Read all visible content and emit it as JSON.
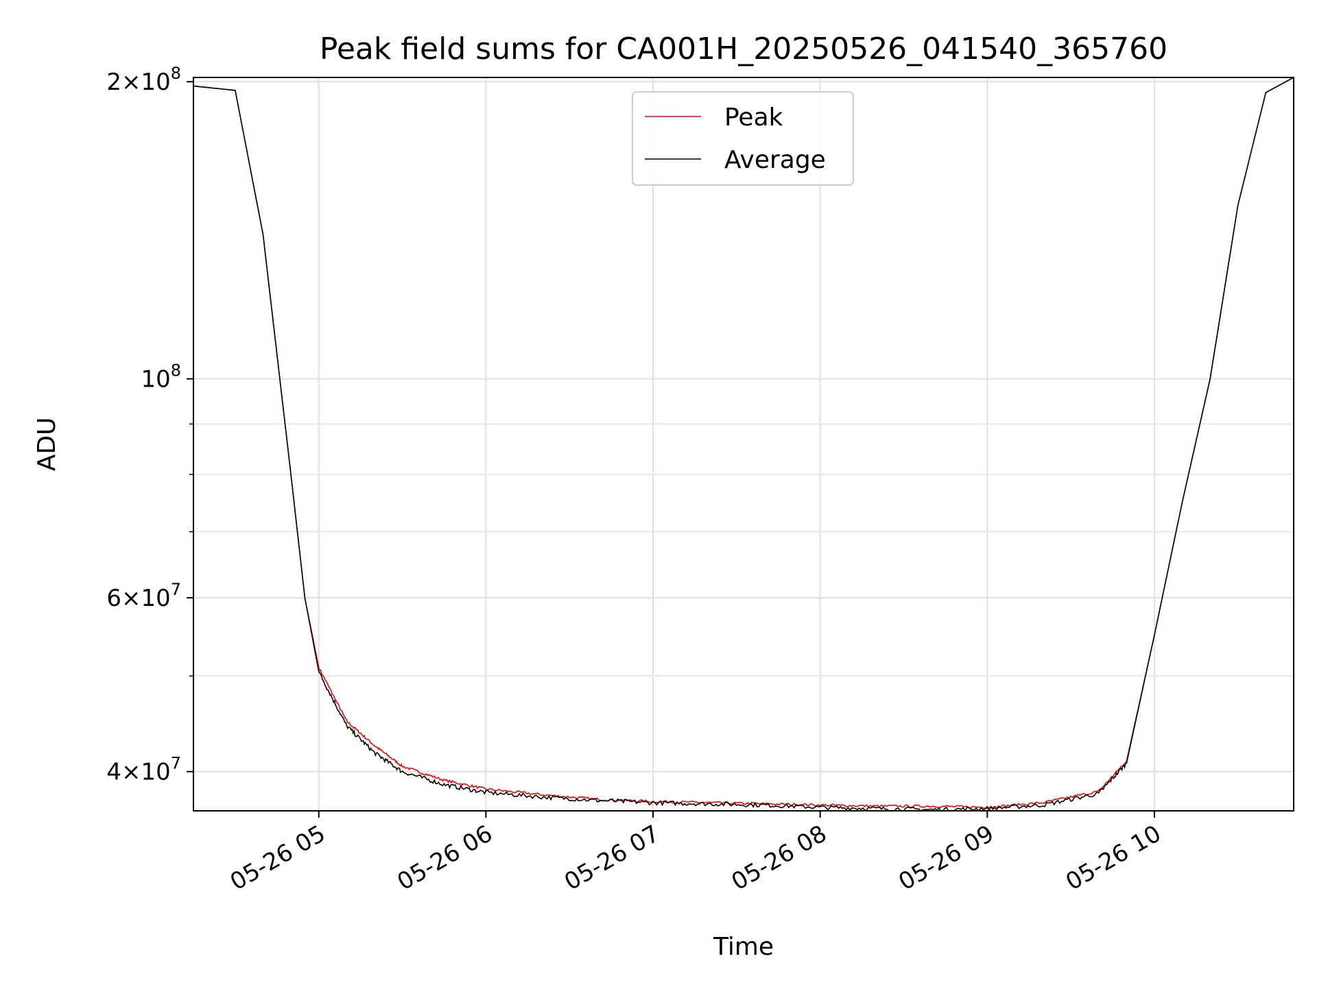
{
  "chart_data": {
    "type": "line",
    "title": "Peak field sums for CA001H_20250526_041540_365760",
    "xlabel": "Time",
    "ylabel": "ADU",
    "yscale": "log",
    "xlim": [
      "05-26 04:15",
      "05-26 10:50"
    ],
    "ylim": [
      36500000,
      202000000
    ],
    "grid": true,
    "legend_position": "top-center",
    "x_ticks": [
      "05-26 05",
      "05-26 06",
      "05-26 07",
      "05-26 08",
      "05-26 09",
      "05-26 10"
    ],
    "y_tick_labels": [
      {
        "value": 200000000,
        "mantissa": "2",
        "exp": "8"
      },
      {
        "value": 100000000,
        "mantissa": "",
        "exp": "8"
      },
      {
        "value": 60000000,
        "mantissa": "6",
        "exp": "7"
      },
      {
        "value": 40000000,
        "mantissa": "4",
        "exp": "7"
      }
    ],
    "y_minor_ticks": [
      50000000,
      70000000,
      80000000,
      90000000
    ],
    "series": [
      {
        "name": "Peak",
        "color": "#ff0000",
        "x": [
          "05-26 04:15",
          "05-26 04:30",
          "05-26 04:40",
          "05-26 04:50",
          "05-26 04:55",
          "05-26 05:00",
          "05-26 05:10",
          "05-26 05:20",
          "05-26 05:30",
          "05-26 05:45",
          "05-26 06:00",
          "05-26 06:20",
          "05-26 06:40",
          "05-26 07:00",
          "05-26 07:20",
          "05-26 07:40",
          "05-26 08:00",
          "05-26 08:20",
          "05-26 08:40",
          "05-26 09:00",
          "05-26 09:20",
          "05-26 09:40",
          "05-26 09:50",
          "05-26 10:00",
          "05-26 10:10",
          "05-26 10:20",
          "05-26 10:30",
          "05-26 10:40",
          "05-26 10:50"
        ],
        "y": [
          198000000,
          196000000,
          140000000,
          80000000,
          60000000,
          51000000,
          45000000,
          42500000,
          40500000,
          39200000,
          38400000,
          37900000,
          37500000,
          37300000,
          37200000,
          37100000,
          37000000,
          36900000,
          36900000,
          36800000,
          37200000,
          38200000,
          41000000,
          55000000,
          75000000,
          100000000,
          150000000,
          195000000,
          202000000
        ]
      },
      {
        "name": "Average",
        "color": "#000000",
        "x": [
          "05-26 04:15",
          "05-26 04:30",
          "05-26 04:40",
          "05-26 04:50",
          "05-26 04:55",
          "05-26 05:00",
          "05-26 05:10",
          "05-26 05:20",
          "05-26 05:30",
          "05-26 05:45",
          "05-26 06:00",
          "05-26 06:20",
          "05-26 06:40",
          "05-26 07:00",
          "05-26 07:20",
          "05-26 07:40",
          "05-26 08:00",
          "05-26 08:20",
          "05-26 08:40",
          "05-26 09:00",
          "05-26 09:20",
          "05-26 09:40",
          "05-26 09:50",
          "05-26 10:00",
          "05-26 10:10",
          "05-26 10:20",
          "05-26 10:30",
          "05-26 10:40",
          "05-26 10:50"
        ],
        "y": [
          198000000,
          196000000,
          140000000,
          80000000,
          60000000,
          50500000,
          44500000,
          41800000,
          40000000,
          38800000,
          38100000,
          37700000,
          37400000,
          37200000,
          37100000,
          37000000,
          36800000,
          36700000,
          36600000,
          36700000,
          37000000,
          38000000,
          40800000,
          55000000,
          75000000,
          100000000,
          150000000,
          195000000,
          202000000
        ]
      }
    ]
  }
}
